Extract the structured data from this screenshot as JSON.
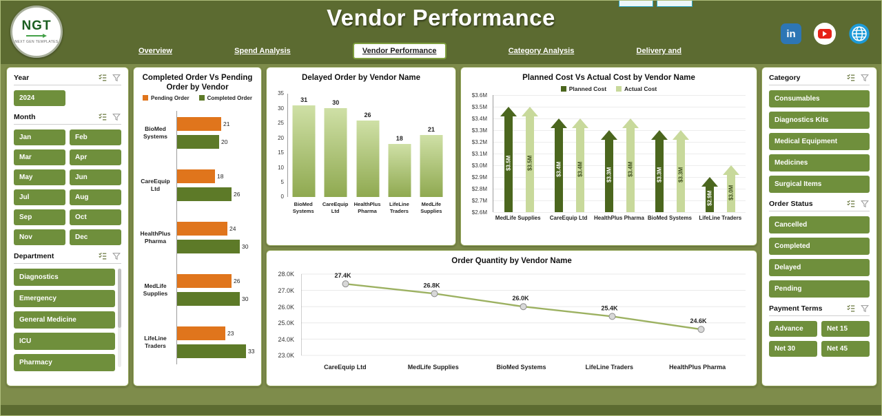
{
  "theme": {
    "header_bg": "#5c6b31",
    "body_bg": "#7e8c4b",
    "panel_border": "#93a558",
    "button_green": "#6f8f3c",
    "pending_orange": "#e0751c",
    "completed_green": "#5d7a28",
    "planned_dark": "#4b661e",
    "actual_light": "#c8d99b",
    "line_green": "#9cb161"
  },
  "header": {
    "title": "Vendor Performance",
    "logo": {
      "text": "NGT",
      "subtext": "NEXT GEN TEMPLATES"
    },
    "nav": [
      {
        "label": "Overview",
        "active": false
      },
      {
        "label": "Spend Analysis",
        "active": false
      },
      {
        "label": "Vendor Performance",
        "active": true
      },
      {
        "label": "Category Analysis",
        "active": false
      },
      {
        "label": "Delivery and",
        "active": false
      }
    ],
    "social": [
      {
        "name": "linkedin",
        "text": "in"
      },
      {
        "name": "youtube"
      },
      {
        "name": "globe"
      }
    ]
  },
  "filters": {
    "left": [
      {
        "label": "Year",
        "layout": "grid-2",
        "options": [
          "2024"
        ]
      },
      {
        "label": "Month",
        "layout": "grid-2",
        "options": [
          "Jan",
          "Feb",
          "Mar",
          "Apr",
          "May",
          "Jun",
          "Jul",
          "Aug",
          "Sep",
          "Oct",
          "Nov",
          "Dec"
        ]
      },
      {
        "label": "Department",
        "layout": "list-scroll",
        "options": [
          "Diagnostics",
          "Emergency",
          "General Medicine",
          "ICU",
          "Pharmacy"
        ]
      }
    ],
    "right": [
      {
        "label": "Category",
        "layout": "list",
        "options": [
          "Consumables",
          "Diagnostics Kits",
          "Medical Equipment",
          "Medicines",
          "Surgical Items"
        ]
      },
      {
        "label": "Order Status",
        "layout": "list",
        "options": [
          "Cancelled",
          "Completed",
          "Delayed",
          "Pending"
        ]
      },
      {
        "label": "Payment Terms",
        "layout": "grid-2",
        "options": [
          "Advance",
          "Net 15",
          "Net 30",
          "Net 45"
        ]
      }
    ]
  },
  "chart_data": [
    {
      "type": "bar",
      "orientation": "horizontal",
      "title": "Completed Order Vs Pending Order by Vendor",
      "categories": [
        "BioMed Systems",
        "CareEquip Ltd",
        "HealthPlus Pharma",
        "MedLife Supplies",
        "LifeLine Traders"
      ],
      "series": [
        {
          "name": "Pending Order",
          "color": "#e0751c",
          "values": [
            21,
            18,
            24,
            26,
            23
          ]
        },
        {
          "name": "Completed Order",
          "color": "#5d7a28",
          "values": [
            20,
            26,
            30,
            30,
            33
          ]
        }
      ],
      "scale_max": 35,
      "legend_position": "top"
    },
    {
      "type": "bar",
      "title": "Delayed Order by Vendor Name",
      "categories": [
        "BioMed Systems",
        "CareEquip Ltd",
        "HealthPlus Pharma",
        "LifeLine Traders",
        "MedLife Supplies"
      ],
      "values": [
        31,
        30,
        26,
        18,
        21
      ],
      "ylim": [
        0,
        35
      ],
      "yticks": [
        0,
        5,
        10,
        15,
        20,
        25,
        30,
        35
      ],
      "bar_gradient": [
        "#cfe0a6",
        "#8fa950"
      ],
      "grid": false
    },
    {
      "type": "bar",
      "shape": "arrow",
      "title": "Planned Cost Vs Actual Cost by Vendor Name",
      "categories": [
        "MedLife Supplies",
        "CareEquip Ltd",
        "HealthPlus Pharma",
        "BioMed Systems",
        "LifeLine Traders"
      ],
      "series": [
        {
          "name": "Planned Cost",
          "color": "#4b661e",
          "label_color": "#ffffff",
          "values": [
            3.5,
            3.4,
            3.3,
            3.3,
            2.9
          ],
          "labels": [
            "$3.5M",
            "$3.4M",
            "$3.3M",
            "$3.3M",
            "$2.9M"
          ]
        },
        {
          "name": "Actual Cost",
          "color": "#c8d99b",
          "label_color": "#3c4c1c",
          "values": [
            3.5,
            3.4,
            3.4,
            3.3,
            3.0
          ],
          "labels": [
            "$3.5M",
            "$3.4M",
            "$3.4M",
            "$3.3M",
            "$3.0M"
          ]
        }
      ],
      "ylim": [
        2.6,
        3.6
      ],
      "yticks": [
        "$3.6M",
        "$3.5M",
        "$3.4M",
        "$3.3M",
        "$3.2M",
        "$3.1M",
        "$3.0M",
        "$2.9M",
        "$2.8M",
        "$2.7M",
        "$2.6M"
      ],
      "legend_position": "top",
      "grid": true
    },
    {
      "type": "line",
      "title": "Order Quantity by Vendor Name",
      "categories": [
        "CareEquip Ltd",
        "MedLife Supplies",
        "BioMed Systems",
        "LifeLine Traders",
        "HealthPlus Pharma"
      ],
      "values": [
        27.4,
        26.8,
        26.0,
        25.4,
        24.6
      ],
      "labels": [
        "27.4K",
        "26.8K",
        "26.0K",
        "25.4K",
        "24.6K"
      ],
      "ylim": [
        23.0,
        28.0
      ],
      "yticks": [
        "28.0K",
        "27.0K",
        "26.0K",
        "25.0K",
        "24.0K",
        "23.0K"
      ],
      "ytick_values": [
        28,
        27,
        26,
        25,
        24,
        23
      ],
      "grid": true
    }
  ]
}
